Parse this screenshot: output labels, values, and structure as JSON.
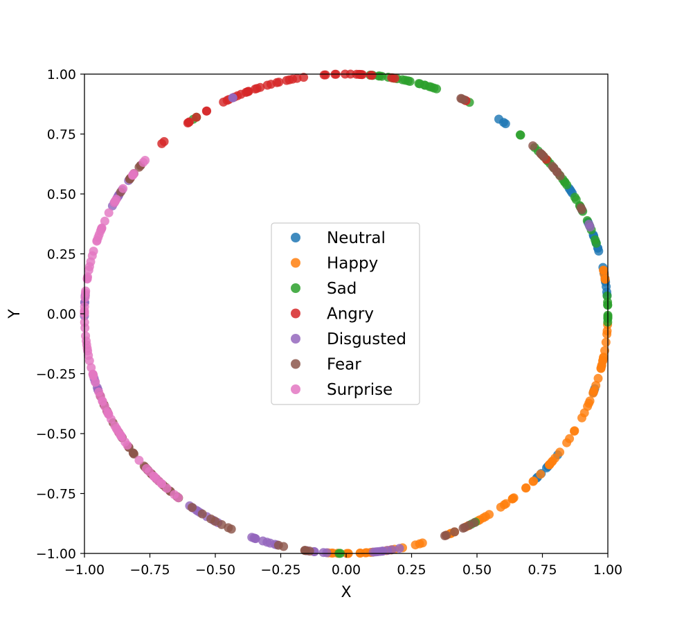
{
  "chart_data": {
    "type": "scatter",
    "title": "",
    "xlabel": "X",
    "ylabel": "Y",
    "xlim": [
      -1.0,
      1.0
    ],
    "ylim": [
      -1.0,
      1.0
    ],
    "xticks": [
      "−1.00",
      "−0.75",
      "−0.50",
      "−0.25",
      "0.00",
      "0.25",
      "0.50",
      "0.75",
      "1.00"
    ],
    "yticks": [
      "−1.00",
      "−0.75",
      "−0.50",
      "−0.25",
      "0.00",
      "0.25",
      "0.50",
      "0.75",
      "1.00"
    ],
    "grid": false,
    "legend_position": "center",
    "series": [
      {
        "name": "Neutral",
        "color": "#1f77b4",
        "angle_ranges_deg": [
          [
            -44,
            -35
          ],
          [
            -20,
            -17
          ],
          [
            3,
            32
          ],
          [
            52,
            55
          ]
        ]
      },
      {
        "name": "Happy",
        "color": "#ff7f0e",
        "angle_ranges_deg": [
          [
            -95,
            -72
          ],
          [
            -68,
            -2
          ],
          [
            8,
            13
          ]
        ]
      },
      {
        "name": "Sad",
        "color": "#2ca02c",
        "angle_ranges_deg": [
          [
            -92,
            -90
          ],
          [
            -62,
            -60
          ],
          [
            -2,
            8
          ],
          [
            17,
            30
          ],
          [
            32,
            50
          ],
          [
            60,
            85
          ],
          [
            124,
            126
          ]
        ]
      },
      {
        "name": "Angry",
        "color": "#d62728",
        "angle_ranges_deg": [
          [
            40,
            42
          ],
          [
            62,
            64
          ],
          [
            78,
            80
          ],
          [
            84,
            100
          ],
          [
            100,
            130
          ],
          [
            134,
            136
          ]
        ]
      },
      {
        "name": "Disgusted",
        "color": "#9467bd",
        "angle_ranges_deg": [
          [
            -127,
            -118
          ],
          [
            -112,
            -105
          ],
          [
            -99,
            -94
          ],
          [
            -85,
            -78
          ],
          [
            -83,
            -80
          ],
          [
            -113,
            -110
          ],
          [
            -165,
            -160
          ],
          [
            20,
            22
          ],
          [
            115,
            117
          ],
          [
            145,
            155
          ],
          [
            175,
            181
          ]
        ]
      },
      {
        "name": "Fear",
        "color": "#8c564b",
        "angle_ranges_deg": [
          [
            -160,
            -115
          ],
          [
            -105,
            -98
          ],
          [
            -68,
            -60
          ],
          [
            25,
            27
          ],
          [
            35,
            45
          ],
          [
            63,
            66
          ],
          [
            141,
            150
          ]
        ]
      },
      {
        "name": "Surprise",
        "color": "#e377c2",
        "angle_ranges_deg": [
          [
            -170,
            -125
          ],
          [
            140,
            190
          ]
        ]
      }
    ]
  }
}
